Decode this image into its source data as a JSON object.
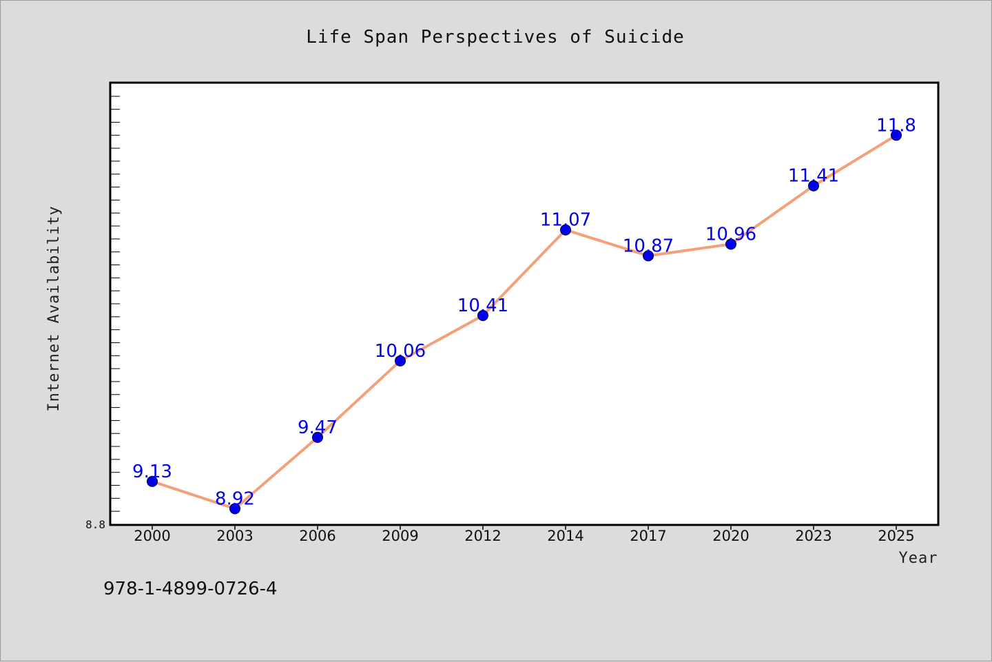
{
  "chart_data": {
    "type": "line",
    "title": "Life Span Perspectives of Suicide",
    "xlabel": "Year",
    "ylabel": "Internet Availability",
    "categories": [
      "2000",
      "2003",
      "2006",
      "2009",
      "2012",
      "2014",
      "2017",
      "2020",
      "2023",
      "2025"
    ],
    "series": [
      {
        "values": [
          9.13,
          8.92,
          9.47,
          10.06,
          10.41,
          11.07,
          10.87,
          10.96,
          11.41,
          11.8
        ]
      }
    ],
    "ylim": [
      8.8,
      12.2
    ],
    "y_tick_labels": [
      "8.8"
    ],
    "grid": false,
    "legend": "none",
    "line_color": "#f4a07a",
    "marker_color": "#0000ee",
    "label_color": "#0000ee"
  },
  "footer": {
    "isbn": "978-1-4899-0726-4"
  }
}
